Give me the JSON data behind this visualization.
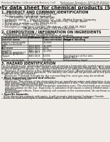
{
  "bg_color": "#f0ede8",
  "title": "Safety data sheet for chemical products (SDS)",
  "header_left": "Product Name: Lithium Ion Battery Cell",
  "header_right_line1": "Reference Number: SPCG-M-SDS10",
  "header_right_line2": "Established / Revision: Dec.7.2010",
  "section1_title": "1. PRODUCT AND COMPANY IDENTIFICATION",
  "section1_items": [
    "• Product name: Lithium Ion Battery Cell",
    "• Product code: Cylindrical-type cell",
    "        (IIF18650U, IIF18650L, IIF18650A)",
    "• Company name:    Sanyo Electric Co., Ltd., Mobile Energy Company",
    "• Address:         2-2-1  Kamiosakan, Sumoto-City, Hyogo, Japan",
    "• Telephone number:   +81-799-26-4111",
    "• Fax number:  +81-799-26-4123",
    "• Emergency telephone number (Weekday): +81-799-26-3842",
    "                        (Night and holiday): +81-799-26-4101"
  ],
  "section2_title": "2. COMPOSITION / INFORMATION ON INGREDIENTS",
  "section2_sub1": "  Substance or preparation: Preparation",
  "section2_sub2": "  • Information about the chemical nature of product:",
  "table_headers": [
    "Component/chemical name",
    "CAS number",
    "Concentration /\nConcentration range",
    "Classification and\nhazard labeling"
  ],
  "table_subheader": "General name",
  "table_rows": [
    [
      "Lithium cobalt oxide\n(LiMn-Co-Fe)(O4)",
      "-",
      "30-60%",
      "-"
    ],
    [
      "Iron",
      "7439-89-6",
      "10-30%",
      "-"
    ],
    [
      "Aluminum",
      "7429-90-5",
      "2-5%",
      "-"
    ],
    [
      "Graphite\n(Flake or graphite+)\n(Artificial graphite)",
      "7782-42-5\n7782-44-7",
      "10-25%",
      "-"
    ],
    [
      "Copper",
      "7440-50-8",
      "5-15%",
      "Sensitization of the skin\ngroup No.2"
    ],
    [
      "Organic electrolyte",
      "-",
      "10-20%",
      "Inflammatory liquid"
    ]
  ],
  "section3_title": "3. HAZARD IDENTIFICATION",
  "section3_paras": [
    "For the battery cell, chemical materials are stored in a hermetically sealed metal case, designed to withstand",
    "temperatures from -40 to +80° under normal conditions during normal use. As a result, during normal use, there is no",
    "physical danger of ignition or explosion and there is no danger of hazardous materials leakage.",
    "    However, if exposed to a fire, added mechanical shock, decomposed, unless alarms activate any misuse can",
    "be gas release cannot be operated. The battery cell case will be punctured at fire portions. Hazardous",
    "materials may be released.",
    "    Moreover, if heated strongly by the surrounding fire, soot gas may be emitted."
  ],
  "bullet1": "• Most important hazard and effects:",
  "bullet1_sub": "Human health effects:",
  "inhalation": "Inhalation: The release of the electrolyte has an anesthesia action and stimulates in respiratory tract.",
  "skin1": "Skin contact: The release of the electrolyte stimulates a skin. The electrolyte skin contact causes a",
  "skin2": "sore and stimulation on the skin.",
  "eye1": "Eye contact: The release of the electrolyte stimulates eyes. The electrolyte eye contact causes a sore",
  "eye2": "and stimulation on the eye. Especially, a substance that causes a strong inflammation of the eye is",
  "eye3": "contained.",
  "env1": "Environmental effects: Since a battery cell remains in the environment, do not throw out it into the",
  "env2": "environment.",
  "bullet2": "• Specific hazards:",
  "specific1": "If the electrolyte contacts with water, it will generate detrimental hydrogen fluoride.",
  "specific2": "Since the used electrolyte is inflammable liquid, do not bring close to fire."
}
